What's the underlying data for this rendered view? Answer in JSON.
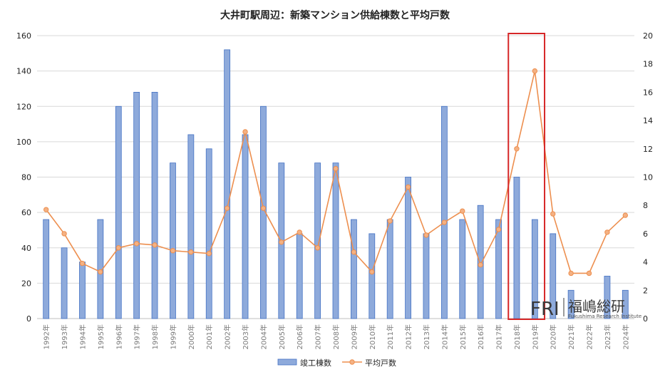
{
  "chart_data": {
    "type": "bar+line",
    "title": "大井町駅周辺：新築マンション供給棟数と平均戸数",
    "categories": [
      "1992年",
      "1993年",
      "1994年",
      "1995年",
      "1996年",
      "1997年",
      "1998年",
      "1999年",
      "2000年",
      "2001年",
      "2002年",
      "2003年",
      "2004年",
      "2005年",
      "2006年",
      "2007年",
      "2008年",
      "2009年",
      "2010年",
      "2011年",
      "2012年",
      "2013年",
      "2014年",
      "2015年",
      "2016年",
      "2017年",
      "2018年",
      "2019年",
      "2020年",
      "2021年",
      "2022年",
      "2023年",
      "2024年"
    ],
    "series": [
      {
        "name": "竣工棟数",
        "type": "bar",
        "axis": "left",
        "color": "#8eaadb",
        "values": [
          56,
          40,
          32,
          56,
          120,
          128,
          128,
          88,
          104,
          96,
          152,
          104,
          120,
          88,
          48,
          88,
          88,
          56,
          48,
          56,
          80,
          48,
          120,
          56,
          64,
          56,
          80,
          56,
          48,
          16,
          0,
          24,
          16
        ]
      },
      {
        "name": "平均戸数",
        "type": "line",
        "axis": "right",
        "color": "#ed8f4f",
        "values": [
          7.7,
          6.0,
          3.9,
          3.3,
          5.0,
          5.3,
          5.2,
          4.8,
          4.7,
          4.6,
          7.8,
          13.2,
          7.8,
          5.4,
          6.1,
          5.0,
          10.6,
          4.7,
          3.3,
          6.9,
          9.3,
          5.9,
          6.8,
          7.6,
          3.8,
          6.3,
          12.0,
          17.5,
          7.4,
          3.2,
          3.2,
          6.1,
          7.3
        ]
      }
    ],
    "left_axis": {
      "ylim": [
        0,
        160
      ],
      "ticks": [
        "0",
        "20",
        "40",
        "60",
        "80",
        "100",
        "120",
        "140",
        "160"
      ]
    },
    "right_axis": {
      "ylim": [
        0,
        20
      ],
      "ticks": [
        "0",
        "2",
        "4",
        "6",
        "8",
        "10",
        "12",
        "14",
        "16",
        "18",
        "20"
      ]
    },
    "grid": true,
    "legend_position": "bottom",
    "highlight": {
      "categories": [
        "2018年",
        "2019年"
      ],
      "color": "#d62728"
    }
  },
  "logo": {
    "mark": "FRI",
    "name": "福嶋総研",
    "subtitle": "Fukushima Research Institute"
  }
}
